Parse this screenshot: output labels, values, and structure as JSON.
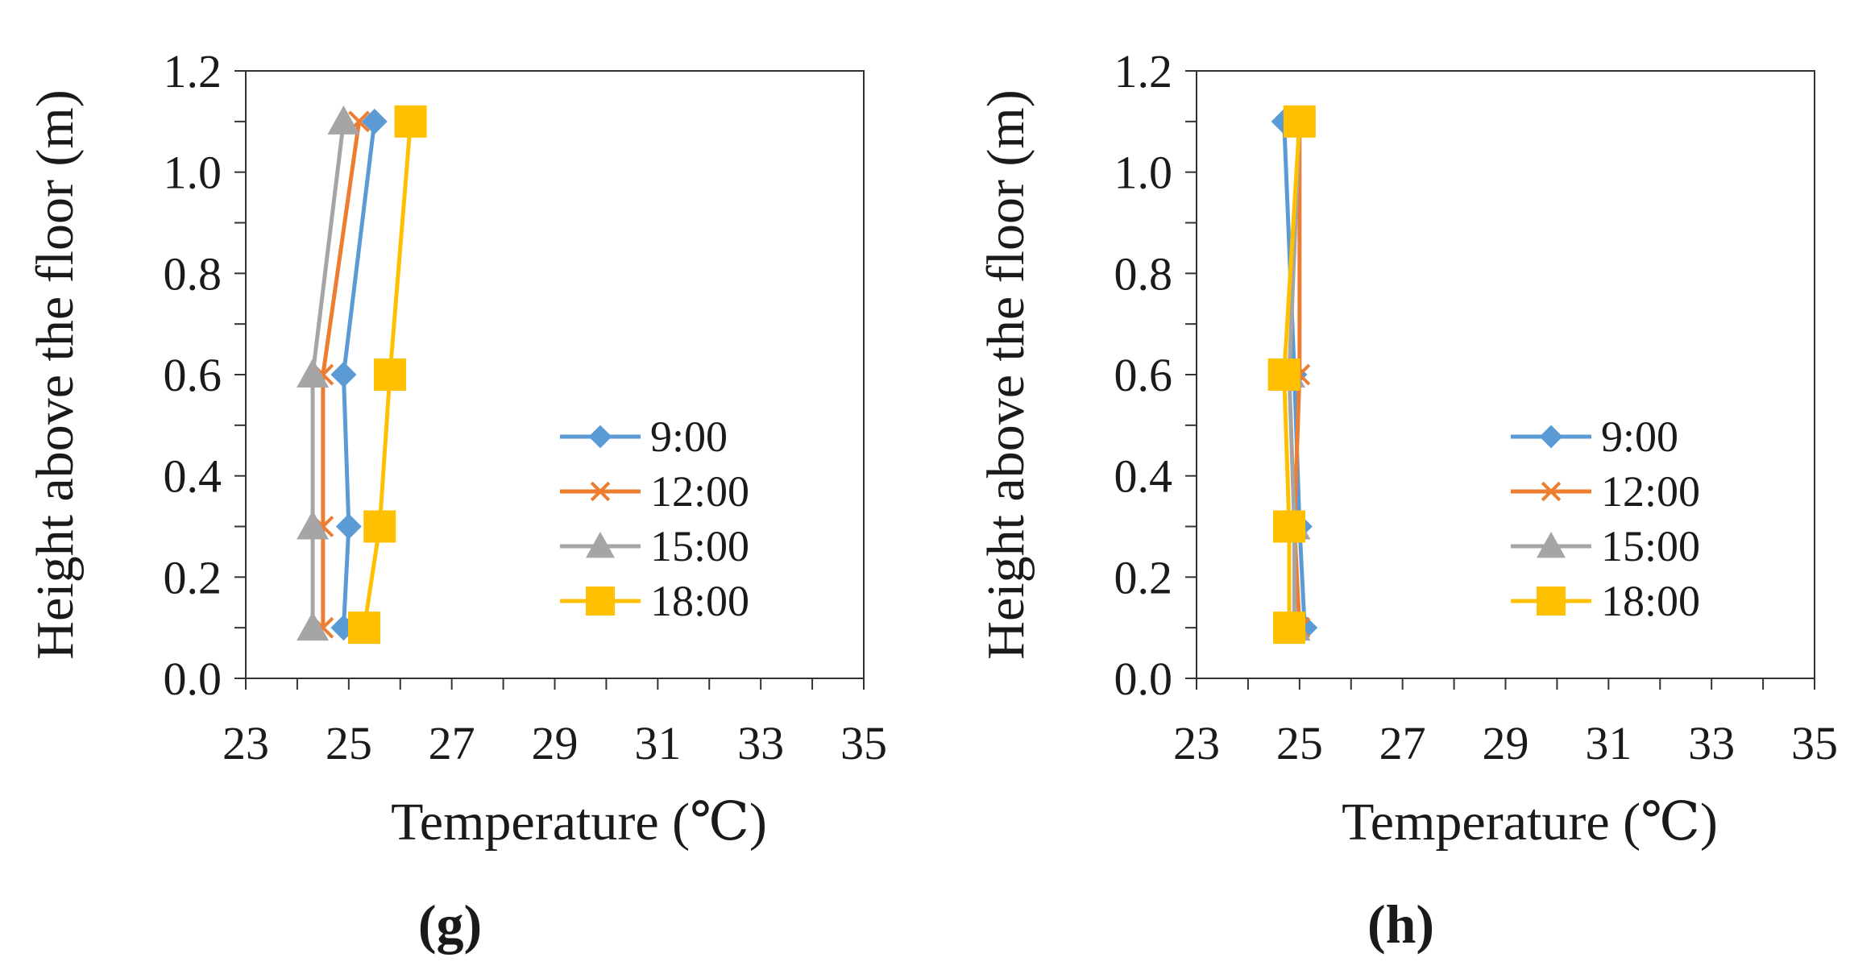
{
  "chart_data": [
    {
      "type": "line",
      "caption": "(g)",
      "xlabel": "Temperature (℃)",
      "ylabel": "Height above the floor (m)",
      "xlim": [
        23,
        35
      ],
      "ylim": [
        0,
        1.2
      ],
      "xticks": [
        "23",
        "25",
        "27",
        "29",
        "31",
        "33",
        "35"
      ],
      "yticks": [
        "0.0",
        "0.2",
        "0.4",
        "0.6",
        "0.8",
        "1.0",
        "1.2"
      ],
      "y": [
        0.1,
        0.3,
        0.6,
        1.1
      ],
      "series": [
        {
          "name": "9:00",
          "color": "#5b9bd5",
          "marker": "diamond",
          "x": [
            24.9,
            25.0,
            24.9,
            25.5
          ]
        },
        {
          "name": "12:00",
          "color": "#ed7d31",
          "marker": "x",
          "x": [
            24.5,
            24.5,
            24.5,
            25.2
          ]
        },
        {
          "name": "15:00",
          "color": "#a5a5a5",
          "marker": "triangle",
          "x": [
            24.3,
            24.3,
            24.3,
            24.9
          ]
        },
        {
          "name": "18:00",
          "color": "#ffc000",
          "marker": "square",
          "x": [
            25.3,
            25.6,
            25.8,
            26.2
          ]
        }
      ],
      "legend": "center-right"
    },
    {
      "type": "line",
      "caption": "(h)",
      "xlabel": "Temperature (℃)",
      "ylabel": "Height above the floor (m)",
      "xlim": [
        23,
        35
      ],
      "ylim": [
        0,
        1.2
      ],
      "xticks": [
        "23",
        "25",
        "27",
        "29",
        "31",
        "33",
        "35"
      ],
      "yticks": [
        "0.0",
        "0.2",
        "0.4",
        "0.6",
        "0.8",
        "1.0",
        "1.2"
      ],
      "y": [
        0.1,
        0.3,
        0.6,
        1.1
      ],
      "series": [
        {
          "name": "9:00",
          "color": "#5b9bd5",
          "marker": "diamond",
          "x": [
            25.1,
            25.0,
            24.9,
            24.7
          ]
        },
        {
          "name": "12:00",
          "color": "#ed7d31",
          "marker": "x",
          "x": [
            25.0,
            24.9,
            25.0,
            25.0
          ]
        },
        {
          "name": "15:00",
          "color": "#a5a5a5",
          "marker": "triangle",
          "x": [
            24.9,
            24.9,
            24.8,
            25.0
          ]
        },
        {
          "name": "18:00",
          "color": "#ffc000",
          "marker": "square",
          "x": [
            24.8,
            24.8,
            24.7,
            25.0
          ]
        }
      ],
      "legend": "center-right"
    }
  ]
}
